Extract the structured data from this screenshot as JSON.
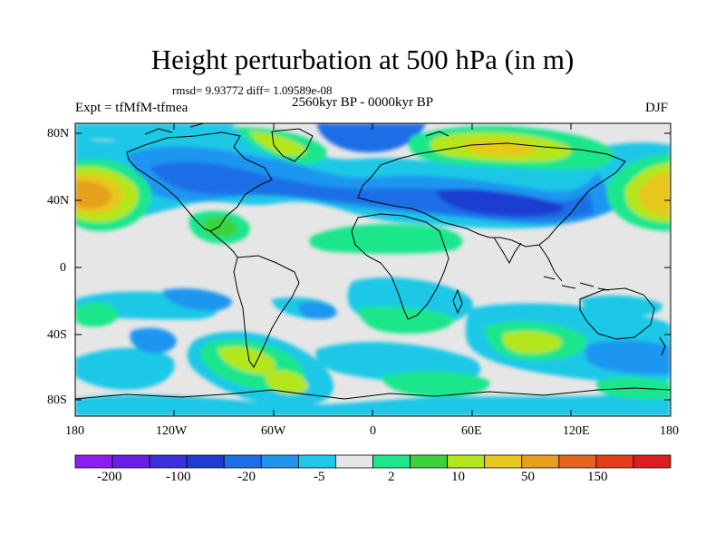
{
  "title": "Height perturbation at 500 hPa (in m)",
  "stats_line": "rmsd= 9.93772 diff= 1.09589e-08",
  "period": "2560kyr BP - 0000kyr BP",
  "experiment": "Expt = tfMfM-tfmea",
  "season": "DJF",
  "lat_ticks": [
    "80N",
    "40N",
    "0",
    "40S",
    "80S"
  ],
  "lon_ticks": [
    "180",
    "120W",
    "60W",
    "0",
    "60E",
    "120E",
    "180"
  ],
  "colorbar": {
    "colors": [
      "#8c1ef0",
      "#6a1ee6",
      "#3c2fdc",
      "#1e3cd2",
      "#1e6ee6",
      "#1e96f0",
      "#1ec8e6",
      "#e6e6e6",
      "#1ee68c",
      "#3cd23c",
      "#b4e61e",
      "#e6c81e",
      "#e6a01e",
      "#e6641e",
      "#e63c1e",
      "#dc1e1e"
    ],
    "labels": [
      "-200",
      "-100",
      "-20",
      "-5",
      "2",
      "10",
      "50",
      "150"
    ]
  }
}
